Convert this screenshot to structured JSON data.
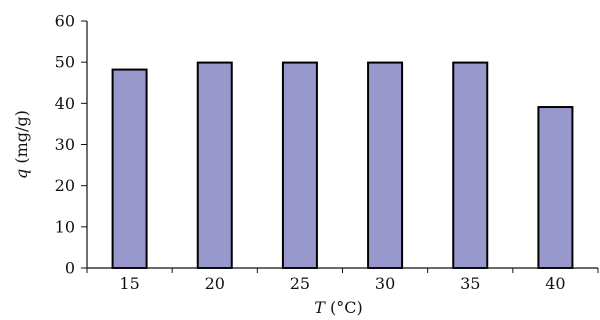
{
  "chart_data": {
    "type": "bar",
    "categories": [
      "15",
      "20",
      "25",
      "30",
      "35",
      "40"
    ],
    "values": [
      48.2,
      49.9,
      49.9,
      49.9,
      49.9,
      39.1
    ],
    "xlabel_var": "T",
    "xlabel_unit": " (°C)",
    "ylabel_var": "q",
    "ylabel_unit": " (mg/g)",
    "ylim": [
      0,
      60
    ],
    "yticks": [
      "0",
      "10",
      "20",
      "30",
      "40",
      "50",
      "60"
    ],
    "bar_color": "#9898cc",
    "edge_color": "#000000",
    "grid": false
  }
}
